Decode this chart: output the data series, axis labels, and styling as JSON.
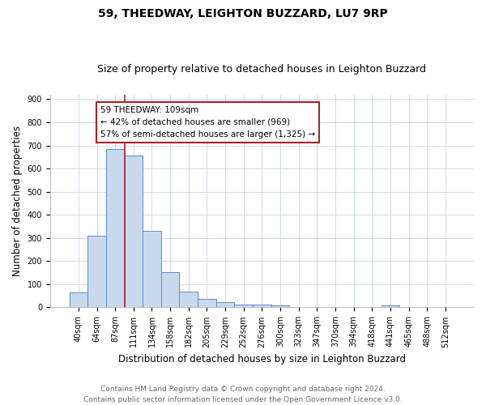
{
  "title": "59, THEEDWAY, LEIGHTON BUZZARD, LU7 9RP",
  "subtitle": "Size of property relative to detached houses in Leighton Buzzard",
  "xlabel": "Distribution of detached houses by size in Leighton Buzzard",
  "ylabel": "Number of detached properties",
  "bar_labels": [
    "40sqm",
    "64sqm",
    "87sqm",
    "111sqm",
    "134sqm",
    "158sqm",
    "182sqm",
    "205sqm",
    "229sqm",
    "252sqm",
    "276sqm",
    "300sqm",
    "323sqm",
    "347sqm",
    "370sqm",
    "394sqm",
    "418sqm",
    "441sqm",
    "465sqm",
    "488sqm",
    "512sqm"
  ],
  "bar_values": [
    65,
    310,
    685,
    655,
    330,
    152,
    68,
    35,
    22,
    12,
    12,
    8,
    0,
    0,
    0,
    0,
    0,
    10,
    0,
    0,
    0
  ],
  "bar_color": "#c8d9ee",
  "bar_edge_color": "#5b8cc8",
  "vline_color": "#aa2222",
  "ylim": [
    0,
    920
  ],
  "yticks": [
    0,
    100,
    200,
    300,
    400,
    500,
    600,
    700,
    800,
    900
  ],
  "annotation_title": "59 THEEDWAY: 109sqm",
  "annotation_line1": "← 42% of detached houses are smaller (969)",
  "annotation_line2": "57% of semi-detached houses are larger (1,325) →",
  "annotation_box_color": "#ffffff",
  "annotation_box_edge": "#aa2222",
  "footer1": "Contains HM Land Registry data © Crown copyright and database right 2024.",
  "footer2": "Contains public sector information licensed under the Open Government Licence v3.0.",
  "background_color": "#ffffff",
  "grid_color": "#c8d4e4",
  "title_fontsize": 10,
  "subtitle_fontsize": 9,
  "ylabel_fontsize": 8.5,
  "xlabel_fontsize": 8.5,
  "tick_fontsize": 7,
  "footer_fontsize": 6.5,
  "annotation_fontsize": 7.5,
  "vline_index": 3
}
